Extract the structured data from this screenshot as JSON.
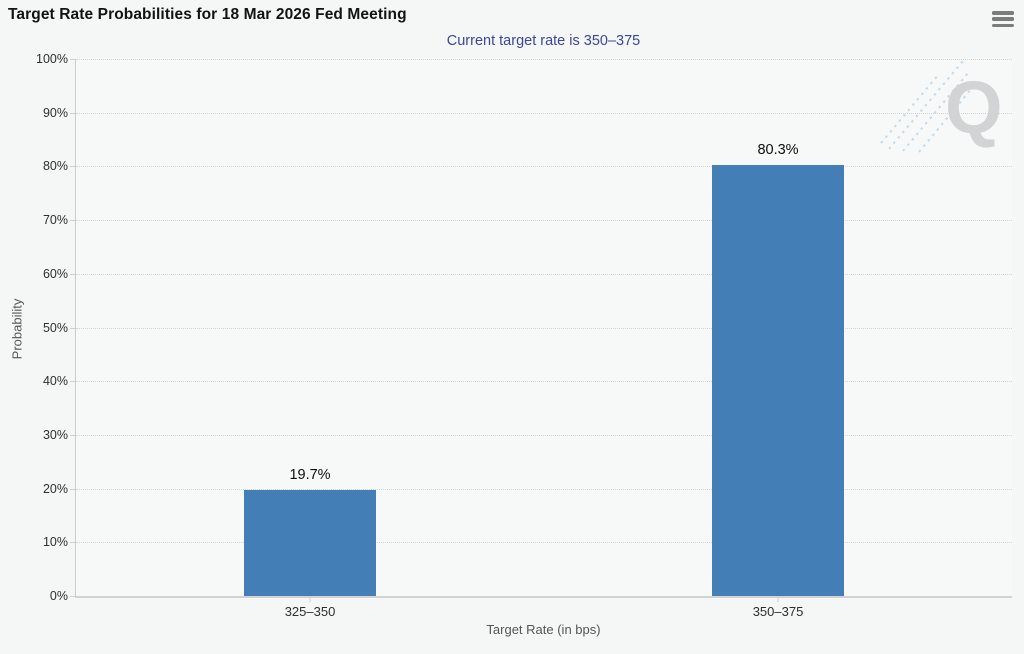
{
  "header": {
    "menu_icon": "hamburger-icon"
  },
  "chart_data": {
    "type": "bar",
    "title": "Target Rate Probabilities for 18 Mar 2026 Fed Meeting",
    "subtitle": "Current target rate is 350–375",
    "categories": [
      "325–350",
      "350–375"
    ],
    "values": [
      19.7,
      80.3
    ],
    "value_labels": [
      "19.7%",
      "80.3%"
    ],
    "xlabel": "Target Rate (in bps)",
    "ylabel": "Probability",
    "ylim": [
      0,
      100
    ],
    "ytick_step": 10,
    "ytick_labels": [
      "0%",
      "10%",
      "20%",
      "30%",
      "40%",
      "50%",
      "60%",
      "70%",
      "80%",
      "90%",
      "100%"
    ],
    "grid": "horizontal-dotted",
    "legend": "none",
    "bar_color": "#447eb7",
    "subtitle_color": "#3c4797"
  },
  "watermark": {
    "letter": "Q",
    "letter_color": "#d2d3d4",
    "accent_color": "#c2dcee"
  }
}
